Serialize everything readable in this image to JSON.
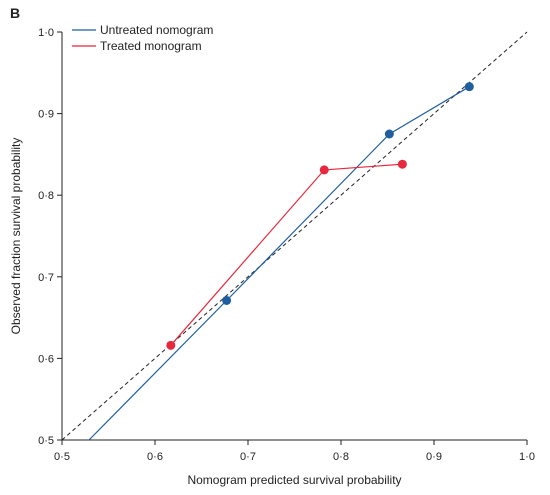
{
  "chart_data": {
    "type": "line",
    "panel_label": "B",
    "title": "",
    "xlabel": "Nomogram predicted survival probability",
    "ylabel": "Observed fraction survival probability",
    "xlim": [
      0.5,
      1.0
    ],
    "ylim": [
      0.5,
      1.0
    ],
    "x_ticks": [
      "0·5",
      "0·6",
      "0·7",
      "0·8",
      "0·9",
      "1·0"
    ],
    "y_ticks": [
      "0·5",
      "0·6",
      "0·7",
      "0·8",
      "0·9",
      "1·0"
    ],
    "legend_position": "top-left",
    "reference_line": "diagonal dashed y = x",
    "series": [
      {
        "name": "Untreated nomogram",
        "color": "#1f5fa0",
        "line_extension": {
          "x": 0.529,
          "y": 0.5
        },
        "points": [
          {
            "x": 0.677,
            "y": 0.671
          },
          {
            "x": 0.852,
            "y": 0.875
          },
          {
            "x": 0.938,
            "y": 0.933
          }
        ]
      },
      {
        "name": "Treated monogram",
        "color": "#e8283c",
        "points": [
          {
            "x": 0.617,
            "y": 0.616
          },
          {
            "x": 0.782,
            "y": 0.831
          },
          {
            "x": 0.866,
            "y": 0.838
          }
        ]
      }
    ]
  }
}
